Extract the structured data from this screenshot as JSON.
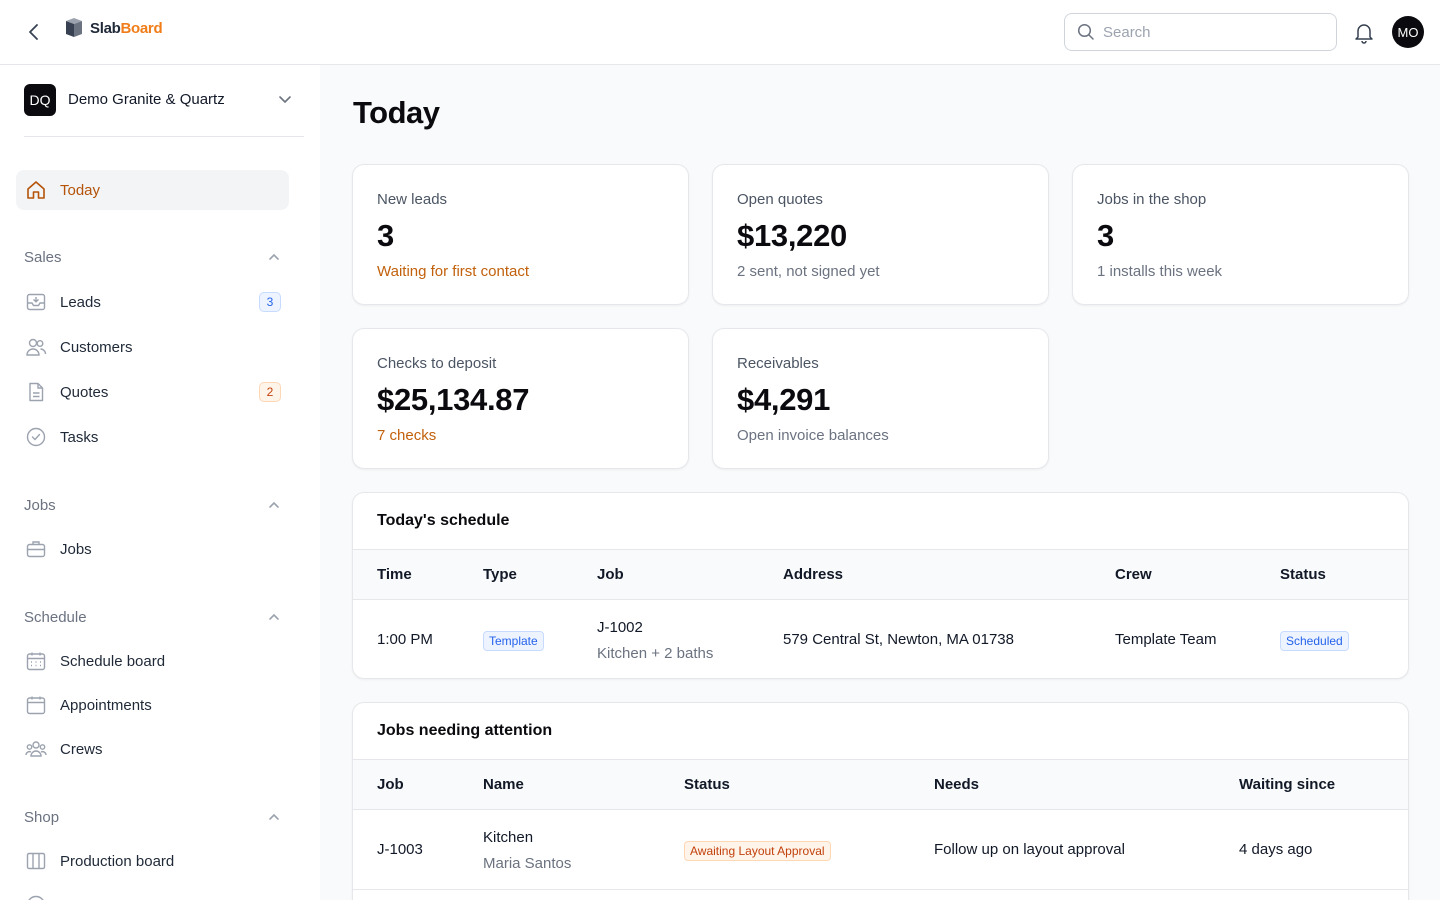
{
  "app": {
    "logo_slab": "Slab",
    "logo_board": "Board",
    "search_placeholder": "Search",
    "user_initials": "MO"
  },
  "org": {
    "initials": "DQ",
    "name": "Demo Granite & Quartz"
  },
  "sidebar": {
    "today": "Today",
    "sales": {
      "label": "Sales",
      "leads": "Leads",
      "leads_count": "3",
      "customers": "Customers",
      "quotes": "Quotes",
      "quotes_count": "2",
      "tasks": "Tasks"
    },
    "jobs": {
      "label": "Jobs",
      "jobs": "Jobs"
    },
    "schedule": {
      "label": "Schedule",
      "schedule_board": "Schedule board",
      "appointments": "Appointments",
      "crews": "Crews"
    },
    "shop": {
      "label": "Shop",
      "production_board": "Production board"
    }
  },
  "page": {
    "title": "Today"
  },
  "cards": [
    {
      "label": "New leads",
      "value": "3",
      "sub": "Waiting for first contact"
    },
    {
      "label": "Open quotes",
      "value": "$13,220",
      "sub": "2 sent, not signed yet"
    },
    {
      "label": "Jobs in the shop",
      "value": "3",
      "sub": "1 installs this week"
    },
    {
      "label": "Checks to deposit",
      "value": "$25,134.87",
      "sub": "7 checks"
    },
    {
      "label": "Receivables",
      "value": "$4,291",
      "sub": "Open invoice balances"
    }
  ],
  "schedule": {
    "title": "Today's schedule",
    "headers": {
      "time": "Time",
      "type": "Type",
      "job": "Job",
      "address": "Address",
      "crew": "Crew",
      "status": "Status"
    },
    "rows": [
      {
        "time": "1:00 PM",
        "type": "Template",
        "job": "J-1002",
        "job_desc": "Kitchen + 2 baths",
        "address": "579 Central St, Newton, MA 01738",
        "crew": "Template Team",
        "status": "Scheduled"
      }
    ]
  },
  "attention": {
    "title": "Jobs needing attention",
    "headers": {
      "job": "Job",
      "name": "Name",
      "status": "Status",
      "needs": "Needs",
      "waiting": "Waiting since"
    },
    "rows": [
      {
        "job": "J-1003",
        "name": "Kitchen",
        "customer": "Maria Santos",
        "status": "Awaiting Layout Approval",
        "needs": "Follow up on layout approval",
        "waiting": "4 days ago"
      }
    ]
  }
}
